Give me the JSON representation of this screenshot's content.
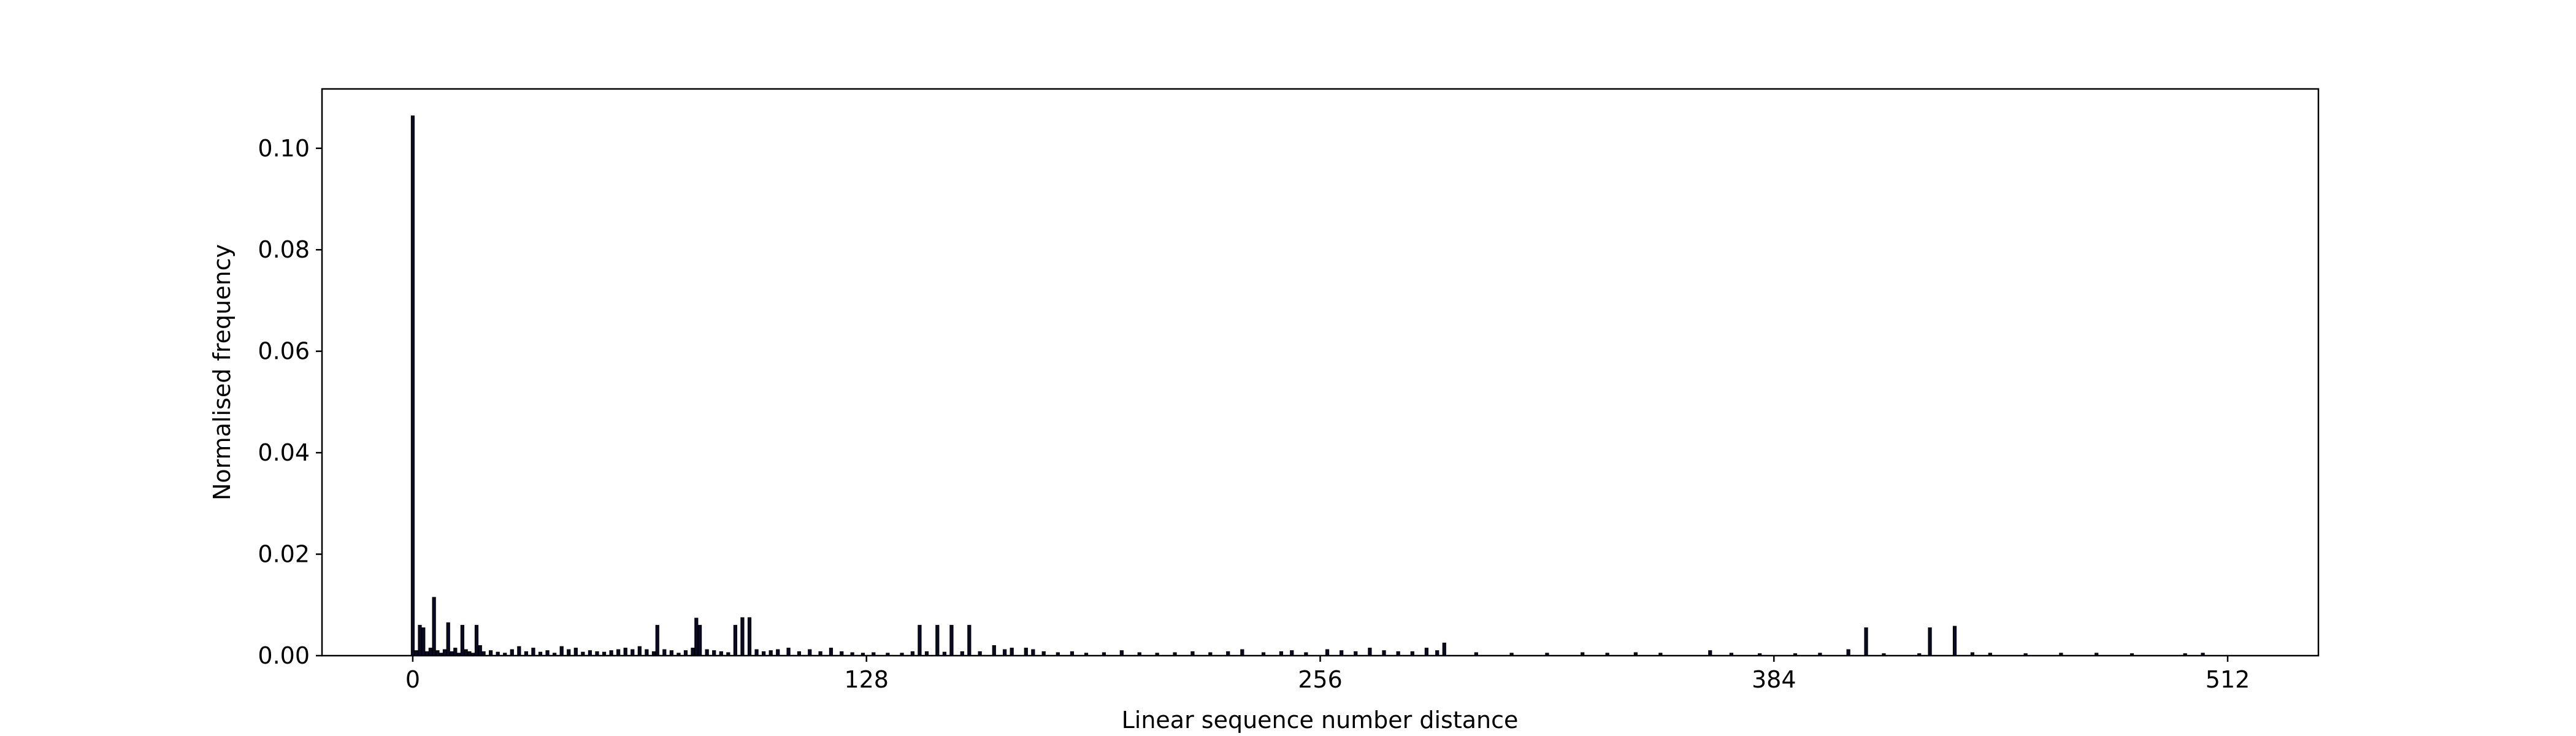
{
  "chart_data": {
    "type": "bar",
    "xlabel": "Linear sequence number distance",
    "ylabel": "Normalised frequency",
    "color": "#0a0a23",
    "x": [
      0,
      1,
      2,
      3,
      4,
      5,
      6,
      7,
      8,
      9,
      10,
      11,
      12,
      13,
      14,
      15,
      16,
      17,
      18,
      19,
      20,
      22,
      24,
      26,
      28,
      30,
      32,
      34,
      36,
      38,
      40,
      42,
      44,
      46,
      48,
      50,
      52,
      54,
      56,
      58,
      60,
      62,
      64,
      66,
      68,
      69,
      71,
      73,
      75,
      77,
      79,
      80,
      81,
      83,
      85,
      87,
      89,
      91,
      93,
      95,
      97,
      99,
      101,
      103,
      106,
      109,
      112,
      115,
      118,
      121,
      124,
      127,
      130,
      134,
      138,
      141,
      143,
      145,
      148,
      150,
      152,
      155,
      157,
      160,
      164,
      167,
      169,
      173,
      175,
      178,
      182,
      186,
      190,
      195,
      200,
      205,
      210,
      215,
      220,
      225,
      230,
      234,
      240,
      245,
      248,
      252,
      258,
      262,
      266,
      270,
      274,
      278,
      282,
      286,
      289,
      291,
      300,
      310,
      320,
      330,
      337,
      345,
      352,
      366,
      372,
      380,
      390,
      397,
      405,
      410,
      415,
      425,
      428,
      435,
      440,
      445,
      455,
      465,
      475,
      485,
      500,
      505
    ],
    "values": [
      0.1064,
      0.001,
      0.006,
      0.0055,
      0.0008,
      0.0015,
      0.0115,
      0.001,
      0.0005,
      0.0012,
      0.0065,
      0.0008,
      0.0015,
      0.0005,
      0.006,
      0.0012,
      0.0008,
      0.0005,
      0.006,
      0.002,
      0.0008,
      0.001,
      0.0007,
      0.0005,
      0.0012,
      0.0018,
      0.0008,
      0.0015,
      0.0007,
      0.001,
      0.0005,
      0.0018,
      0.0012,
      0.0015,
      0.0007,
      0.001,
      0.0008,
      0.0007,
      0.001,
      0.0012,
      0.0015,
      0.0012,
      0.0018,
      0.0012,
      0.0008,
      0.006,
      0.0012,
      0.001,
      0.0005,
      0.001,
      0.0015,
      0.0074,
      0.006,
      0.0012,
      0.001,
      0.0008,
      0.0006,
      0.006,
      0.0075,
      0.0075,
      0.0012,
      0.0008,
      0.001,
      0.0012,
      0.0015,
      0.0008,
      0.0012,
      0.0008,
      0.0015,
      0.0008,
      0.0006,
      0.0005,
      0.0006,
      0.0005,
      0.0005,
      0.0008,
      0.006,
      0.0008,
      0.006,
      0.0007,
      0.006,
      0.0008,
      0.006,
      0.0008,
      0.002,
      0.0012,
      0.0015,
      0.0015,
      0.0012,
      0.0008,
      0.0006,
      0.0008,
      0.0005,
      0.0006,
      0.001,
      0.0006,
      0.0005,
      0.0006,
      0.0008,
      0.0006,
      0.0008,
      0.0012,
      0.0006,
      0.0008,
      0.001,
      0.0006,
      0.0012,
      0.001,
      0.0008,
      0.0015,
      0.001,
      0.0008,
      0.0008,
      0.0015,
      0.001,
      0.0025,
      0.0006,
      0.0005,
      0.0005,
      0.0006,
      0.0005,
      0.0006,
      0.0005,
      0.001,
      0.0005,
      0.0004,
      0.0004,
      0.0005,
      0.0012,
      0.0055,
      0.0004,
      0.0004,
      0.0055,
      0.0058,
      0.0006,
      0.0005,
      0.0004,
      0.0005,
      0.0005,
      0.0004,
      0.0004,
      0.0005
    ],
    "xlim": [
      -25.6,
      537.6
    ],
    "xticks": [
      0,
      128,
      256,
      384,
      512
    ],
    "ylim": [
      0,
      0.1117
    ],
    "yticks": [
      {
        "value": 0,
        "label": "0.00"
      },
      {
        "value": 0.02,
        "label": "0.02"
      },
      {
        "value": 0.04,
        "label": "0.04"
      },
      {
        "value": 0.06,
        "label": "0.06"
      },
      {
        "value": 0.08,
        "label": "0.08"
      },
      {
        "value": 0.1,
        "label": "0.10"
      }
    ],
    "grid": false
  }
}
